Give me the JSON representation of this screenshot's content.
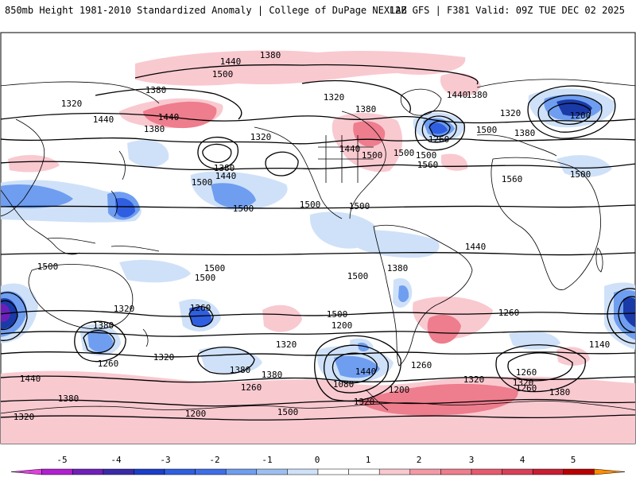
{
  "header": {
    "left": "850mb Height 1981-2010 Standardized Anomaly | College of DuPage NEXLAB",
    "right": "12Z GFS | F381 Valid: 09Z TUE DEC 02 2025"
  },
  "colorbar": {
    "ticks": [
      "-5",
      "-4",
      "-3",
      "-2",
      "-1",
      "0",
      "1",
      "2",
      "3",
      "4",
      "5"
    ],
    "colors": [
      "#ff00ff",
      "#b020d0",
      "#5a1ab0",
      "#1c3fc8",
      "#3f6ee6",
      "#9dbff0",
      "#cfe1f8",
      "#ffffff",
      "#ffffff",
      "#f9c9d0",
      "#f29aa6",
      "#e65a6e",
      "#c81e32",
      "#b80000",
      "#ff8c00",
      "#ffb000"
    ]
  },
  "contour_labels": [
    "1380",
    "1440",
    "1500",
    "1440",
    "1380",
    "1320",
    "1440",
    "1380",
    "1320",
    "1500",
    "1380",
    "1440",
    "1500",
    "1500",
    "1500",
    "1500",
    "1320",
    "1380",
    "1440",
    "1260",
    "1500",
    "1560",
    "1440",
    "1380",
    "1320",
    "1380",
    "1200",
    "1500",
    "1560",
    "1500",
    "1500",
    "1500",
    "1500",
    "1500",
    "1500",
    "1380",
    "1440",
    "1260",
    "1200",
    "1320",
    "1380",
    "1260",
    "1320",
    "1260",
    "1380",
    "1320",
    "1500",
    "1380",
    "1440",
    "1080",
    "1200",
    "1260",
    "1260",
    "1320",
    "1320",
    "1260",
    "1500",
    "1440",
    "1380",
    "1200",
    "1140",
    "1260",
    "1320",
    "1380",
    "1320"
  ],
  "anomaly_colors": {
    "neg1": "#cfe1f8",
    "neg2": "#6f9ef0",
    "neg3": "#2f5fe0",
    "neg4": "#1a3aa8",
    "neg5": "#6a20b8",
    "pos1": "#f9c9d0",
    "pos2": "#ee7d8d",
    "pos3": "#d84058"
  },
  "coast_color": "#000000"
}
